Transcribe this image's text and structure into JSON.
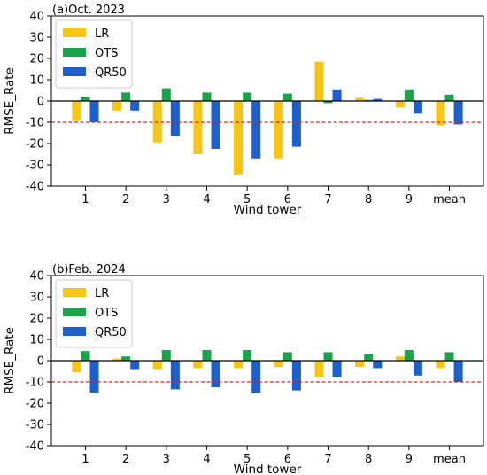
{
  "chart_data": [
    {
      "type": "bar",
      "title": "(a)Oct. 2023",
      "xlabel": "Wind tower",
      "ylabel": "RMSE_Rate",
      "categories": [
        "1",
        "2",
        "3",
        "4",
        "5",
        "6",
        "7",
        "8",
        "9",
        "mean"
      ],
      "ylim": [
        -40,
        40
      ],
      "yticks": [
        40,
        30,
        20,
        10,
        0,
        -10,
        -20,
        -30,
        -40
      ],
      "reference_line": -10,
      "legend_position": "upper-left",
      "series": [
        {
          "name": "LR",
          "color": "#F5C518",
          "values": [
            -9,
            -4.5,
            -19.5,
            -25,
            -34.5,
            -27,
            18.5,
            1.5,
            -3,
            -11.5
          ]
        },
        {
          "name": "OTS",
          "color": "#1AA34A",
          "values": [
            2,
            4,
            6,
            4,
            4,
            3.5,
            -1,
            0.5,
            5.5,
            3
          ]
        },
        {
          "name": "QR50",
          "color": "#1F5FC9",
          "values": [
            -10,
            -4.5,
            -16.5,
            -22.5,
            -27,
            -21.5,
            5.5,
            1,
            -6,
            -11
          ]
        }
      ]
    },
    {
      "type": "bar",
      "title": "(b)Feb. 2024",
      "xlabel": "Wind tower",
      "ylabel": "RMSE_Rate",
      "categories": [
        "1",
        "2",
        "3",
        "4",
        "5",
        "6",
        "7",
        "8",
        "9",
        "mean"
      ],
      "ylim": [
        -40,
        40
      ],
      "yticks": [
        40,
        30,
        20,
        10,
        0,
        -10,
        -20,
        -30,
        -40
      ],
      "reference_line": -10,
      "legend_position": "upper-left",
      "series": [
        {
          "name": "LR",
          "color": "#F5C518",
          "values": [
            -5.5,
            1,
            -4,
            -3.5,
            -3.5,
            -3,
            -7.5,
            -3,
            2,
            -3.5
          ]
        },
        {
          "name": "OTS",
          "color": "#1AA34A",
          "values": [
            4.5,
            2,
            5,
            5,
            5,
            4,
            4,
            3,
            5,
            4
          ]
        },
        {
          "name": "QR50",
          "color": "#1F5FC9",
          "values": [
            -15,
            -4,
            -13.5,
            -12.5,
            -15,
            -14,
            -7.5,
            -3.5,
            -7,
            -10
          ]
        }
      ]
    }
  ]
}
